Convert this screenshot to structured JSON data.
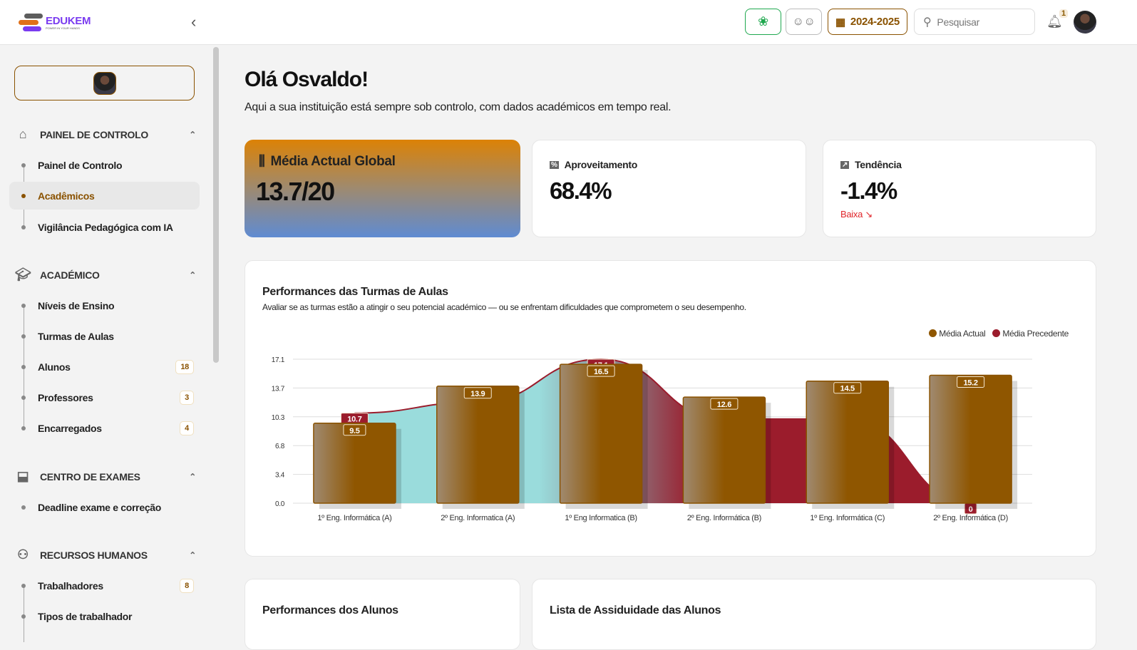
{
  "header": {
    "logo_text": "EDUKEM",
    "logo_tagline": "POWER IN YOUR HANDS",
    "year": "2024-2025",
    "search_placeholder": "Pesquisar",
    "notifications": "1"
  },
  "sidebar": {
    "sections": [
      {
        "title": "PAINEL DE CONTROLO",
        "items": [
          {
            "label": "Painel de Controlo"
          },
          {
            "label": "Acadêmicos",
            "active": true
          },
          {
            "label": "Vigilância Pedagógica com IA"
          }
        ]
      },
      {
        "title": "ACADÉMICO",
        "items": [
          {
            "label": "Níveis de Ensino"
          },
          {
            "label": "Turmas de Aulas"
          },
          {
            "label": "Alunos",
            "count": "18"
          },
          {
            "label": "Professores",
            "count": "3"
          },
          {
            "label": "Encarregados",
            "count": "4"
          }
        ]
      },
      {
        "title": "CENTRO DE EXAMES",
        "items": [
          {
            "label": "Deadline exame e correção"
          }
        ]
      },
      {
        "title": "RECURSOS HUMANOS",
        "items": [
          {
            "label": "Trabalhadores",
            "count": "8"
          },
          {
            "label": "Tipos de trabalhador"
          }
        ]
      }
    ]
  },
  "main": {
    "greeting": "Olá Osvaldo!",
    "subtitle": "Aqui a sua instituição está sempre sob controlo, com dados académicos em tempo real.",
    "kpis": {
      "global": {
        "label": "Média Actual Global",
        "value": "13.7/20"
      },
      "aproveitamento": {
        "label": "Aproveitamento",
        "value": "68.4%"
      },
      "tendencia": {
        "label": "Tendência",
        "value": "-1.4%",
        "trend": "Baixa"
      }
    },
    "bottom_cards": [
      "Performances dos Alunos",
      "Lista de Assiduidade das Alunos"
    ]
  },
  "chart_data": {
    "type": "bar",
    "title": "Performances das Turmas de Aulas",
    "subtitle": "Avaliar se as turmas estão a atingir o seu potencial académico — ou se enfrentam dificuldades que comprometem o seu desempenho.",
    "categories": [
      "1º Eng. Informática (A)",
      "2º Eng. Informatica (A)",
      "1º Eng Informatica (B)",
      "2º Eng. Informática (B)",
      "1º Eng. Informática (C)",
      "2º Eng. Informática (D)"
    ],
    "series": [
      {
        "name": "Média Actual",
        "type": "bar",
        "color": "#8f5600",
        "values": [
          9.5,
          13.9,
          16.5,
          12.6,
          14.5,
          15.2
        ]
      },
      {
        "name": "Média Precedente",
        "type": "area",
        "color": "#9b1c2c",
        "values": [
          10.7,
          12.0,
          17.1,
          10,
          10,
          0
        ]
      }
    ],
    "yticks": [
      "0.0",
      "3.4",
      "6.8",
      "10.3",
      "13.7",
      "17.1"
    ],
    "ylim": [
      0,
      17.1
    ],
    "legend": "top-right",
    "grid": true
  }
}
